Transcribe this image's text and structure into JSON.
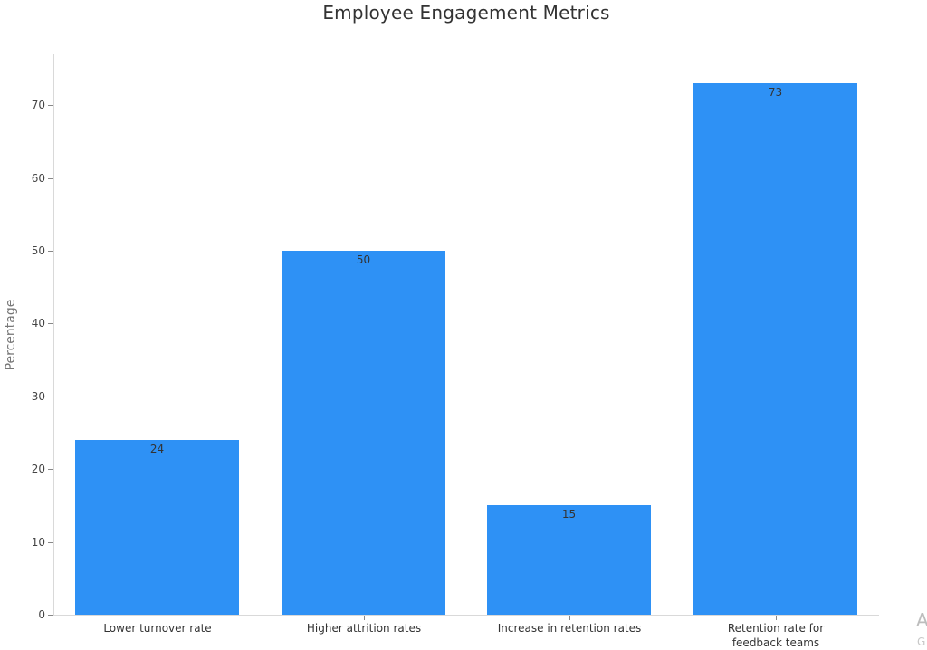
{
  "chart_data": {
    "type": "bar",
    "title": "Employee Engagement Metrics",
    "xlabel": "",
    "ylabel": "Percentage",
    "categories": [
      "Lower turnover rate",
      "Higher attrition rates",
      "Increase in retention rates",
      "Retention rate for feedback teams"
    ],
    "category_lines": [
      [
        "Lower turnover rate"
      ],
      [
        "Higher attrition rates"
      ],
      [
        "Increase in retention rates"
      ],
      [
        "Retention rate for",
        "feedback teams"
      ]
    ],
    "values": [
      24,
      50,
      15,
      73
    ],
    "data_labels": [
      "24",
      "50",
      "15",
      "73"
    ],
    "yticks": [
      0,
      10,
      20,
      30,
      40,
      50,
      60,
      70
    ],
    "ytick_labels": [
      "0",
      "10",
      "20",
      "30",
      "40",
      "50",
      "60",
      "70"
    ],
    "ylim": [
      0,
      77
    ],
    "grid": false,
    "legend": null,
    "bar_color": "#2e91f5"
  },
  "watermark": {
    "line1": "A",
    "line2": "G"
  }
}
